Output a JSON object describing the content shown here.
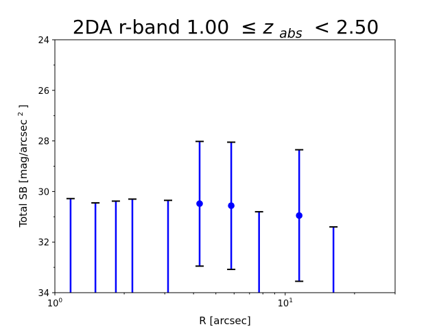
{
  "chart_data": {
    "type": "scatter",
    "title_parts": {
      "prefix": "2DA r-band 1.00",
      "leq": "≤",
      "var": "z",
      "sub": "abs",
      "suffix": "< 2.50"
    },
    "xlabel": "R [arcsec]",
    "ylabel_parts": {
      "main": "Total SB [mag/arcsec",
      "sup": "2",
      "close": "]"
    },
    "x_scale": "log",
    "xlim": [
      1,
      30
    ],
    "ylim": [
      34,
      24
    ],
    "y_inverted": true,
    "grid": false,
    "x_ticks": [
      {
        "value": 1,
        "base": "10",
        "exp": "0"
      },
      {
        "value": 10,
        "base": "10",
        "exp": "1"
      }
    ],
    "y_ticks": [
      24,
      26,
      28,
      30,
      32,
      34
    ],
    "color": "#0000ff",
    "points": [
      {
        "x": 1.17,
        "y": null,
        "yerr_low": 34.0,
        "yerr_high": 30.28
      },
      {
        "x": 1.5,
        "y": null,
        "yerr_low": 34.0,
        "yerr_high": 30.45
      },
      {
        "x": 1.84,
        "y": null,
        "yerr_low": 34.0,
        "yerr_high": 30.38
      },
      {
        "x": 2.17,
        "y": null,
        "yerr_low": 34.0,
        "yerr_high": 30.3
      },
      {
        "x": 3.1,
        "y": null,
        "yerr_low": 34.0,
        "yerr_high": 30.35
      },
      {
        "x": 4.25,
        "y": 30.48,
        "yerr_low": 32.95,
        "yerr_high": 28.02
      },
      {
        "x": 5.83,
        "y": 30.56,
        "yerr_low": 33.08,
        "yerr_high": 28.05
      },
      {
        "x": 7.7,
        "y": null,
        "yerr_low": 34.0,
        "yerr_high": 30.8
      },
      {
        "x": 11.5,
        "y": 30.95,
        "yerr_low": 33.55,
        "yerr_high": 28.35
      },
      {
        "x": 16.2,
        "y": null,
        "yerr_low": 34.0,
        "yerr_high": 31.4
      }
    ]
  }
}
